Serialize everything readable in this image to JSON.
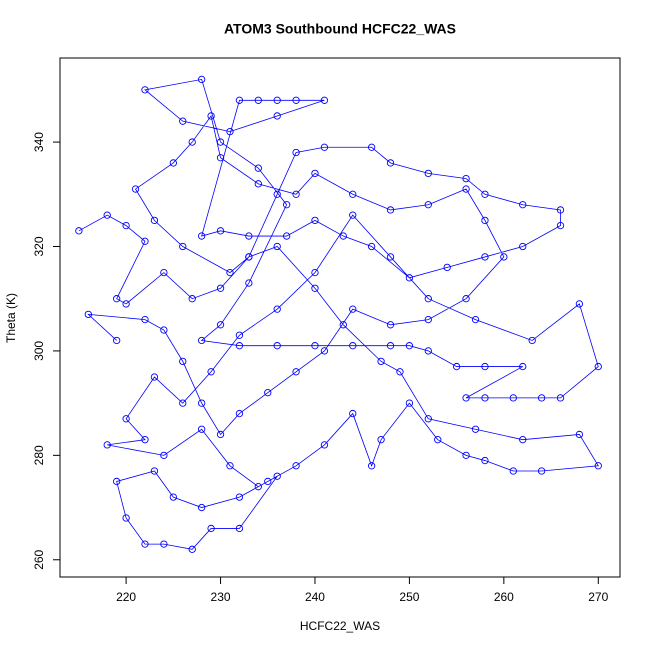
{
  "chart_data": {
    "type": "line",
    "title": "ATOM3 Southbound HCFC22_WAS",
    "x_label": "HCFC22_WAS",
    "y_label": "Theta (K)",
    "color": "#0000ff",
    "x": [
      215,
      218,
      220,
      222,
      219,
      220,
      224,
      227,
      230,
      233,
      236,
      238,
      241,
      246,
      248,
      252,
      256,
      258,
      262,
      266,
      266,
      262,
      258,
      254,
      250,
      246,
      243,
      240,
      237,
      233,
      230,
      228,
      232,
      234,
      236,
      238,
      241,
      236,
      231,
      226,
      222,
      228,
      230,
      234,
      237,
      233,
      230,
      228,
      232,
      236,
      240,
      244,
      248,
      250,
      252,
      255,
      258,
      262,
      256,
      258,
      261,
      264,
      266,
      270,
      268,
      263,
      257,
      252,
      248,
      244,
      240,
      236,
      232,
      229,
      226,
      223,
      220,
      222,
      218,
      224,
      228,
      231,
      234,
      236,
      232,
      229,
      227,
      224,
      222,
      220,
      219,
      223,
      225,
      228,
      232,
      235,
      238,
      241,
      244,
      246,
      247,
      250,
      253,
      256,
      258,
      261,
      264,
      270,
      268,
      262,
      257,
      252,
      249,
      247,
      243,
      240,
      236,
      233,
      231,
      226,
      223,
      221,
      225,
      227,
      229,
      230,
      234,
      238,
      240,
      244,
      248,
      252,
      256,
      258,
      260,
      256,
      252,
      248,
      244,
      241,
      238,
      235,
      232,
      230,
      228,
      226,
      224,
      222,
      216,
      219
    ],
    "y": [
      323,
      326,
      324,
      321,
      310,
      309,
      315,
      310,
      312,
      318,
      330,
      338,
      339,
      339,
      336,
      334,
      333,
      330,
      328,
      327,
      324,
      320,
      318,
      316,
      314,
      320,
      322,
      325,
      322,
      322,
      323,
      322,
      348,
      348,
      348,
      348,
      348,
      345,
      342,
      344,
      350,
      352,
      340,
      335,
      328,
      313,
      305,
      302,
      301,
      301,
      301,
      301,
      301,
      301,
      300,
      297,
      297,
      297,
      291,
      291,
      291,
      291,
      291,
      297,
      309,
      302,
      306,
      310,
      318,
      326,
      315,
      308,
      303,
      296,
      290,
      295,
      287,
      283,
      282,
      280,
      285,
      278,
      274,
      276,
      266,
      266,
      262,
      263,
      263,
      268,
      275,
      277,
      272,
      270,
      272,
      275,
      278,
      282,
      288,
      278,
      283,
      290,
      283,
      280,
      279,
      277,
      277,
      278,
      284,
      283,
      285,
      287,
      296,
      298,
      305,
      312,
      320,
      318,
      315,
      320,
      325,
      331,
      336,
      340,
      345,
      337,
      332,
      330,
      334,
      330,
      327,
      328,
      331,
      325,
      318,
      310,
      306,
      305,
      308,
      300,
      296,
      292,
      288,
      284,
      290,
      298,
      304,
      306,
      307,
      302
    ],
    "xlim": [
      213,
      272.3
    ],
    "ylim": [
      256.7,
      356.1
    ],
    "xticks": [
      220,
      230,
      240,
      250,
      260,
      270
    ],
    "yticks": [
      260,
      280,
      300,
      320,
      340
    ]
  }
}
